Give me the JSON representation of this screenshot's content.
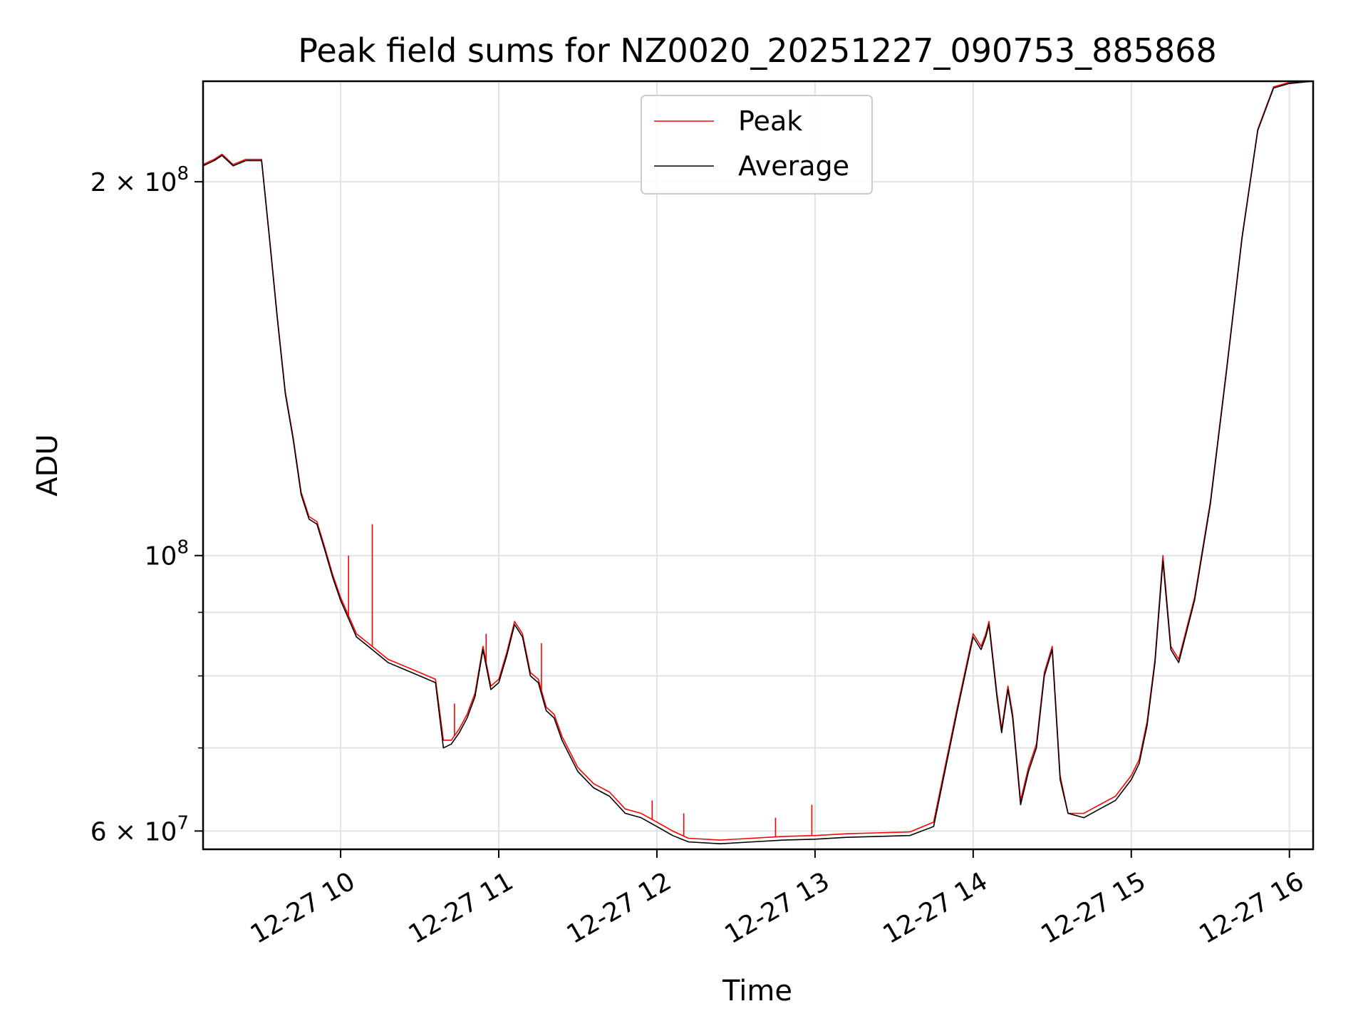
{
  "chart_data": {
    "type": "line",
    "title": "Peak field sums for NZ0020_20251227_090753_885868",
    "xlabel": "Time",
    "ylabel": "ADU",
    "yscale": "log",
    "xlim": [
      9.13,
      16.15
    ],
    "ylim": [
      58000000,
      241000000
    ],
    "grid": true,
    "legend_position": "upper-center",
    "x_ticks": [
      {
        "value": 10,
        "label": "12-27 10"
      },
      {
        "value": 11,
        "label": "12-27 11"
      },
      {
        "value": 12,
        "label": "12-27 12"
      },
      {
        "value": 13,
        "label": "12-27 13"
      },
      {
        "value": 14,
        "label": "12-27 14"
      },
      {
        "value": 15,
        "label": "12-27 15"
      },
      {
        "value": 16,
        "label": "12-27 16"
      }
    ],
    "y_major_ticks": [
      {
        "value": 60000000,
        "base": "6 × 10",
        "exp": "7"
      },
      {
        "value": 100000000,
        "base": "10",
        "exp": "8"
      },
      {
        "value": 200000000,
        "base": "2 × 10",
        "exp": "8"
      }
    ],
    "y_minor_gridlines": [
      70000000,
      80000000,
      90000000
    ],
    "x_unit": "hours (2025-12-27)",
    "series": [
      {
        "name": "Average",
        "color": "#000000",
        "x": [
          9.13,
          9.2,
          9.25,
          9.32,
          9.4,
          9.5,
          9.55,
          9.6,
          9.65,
          9.7,
          9.75,
          9.8,
          9.85,
          9.9,
          9.95,
          10.0,
          10.1,
          10.2,
          10.3,
          10.4,
          10.5,
          10.6,
          10.65,
          10.7,
          10.75,
          10.8,
          10.85,
          10.9,
          10.95,
          11.0,
          11.05,
          11.1,
          11.15,
          11.2,
          11.25,
          11.3,
          11.35,
          11.4,
          11.5,
          11.6,
          11.7,
          11.8,
          11.9,
          12.0,
          12.1,
          12.2,
          12.4,
          12.6,
          12.8,
          13.0,
          13.2,
          13.4,
          13.6,
          13.75,
          13.8,
          13.9,
          14.0,
          14.05,
          14.08,
          14.1,
          14.15,
          14.18,
          14.22,
          14.25,
          14.3,
          14.35,
          14.4,
          14.45,
          14.5,
          14.55,
          14.6,
          14.7,
          14.8,
          14.9,
          15.0,
          15.05,
          15.1,
          15.15,
          15.2,
          15.25,
          15.3,
          15.4,
          15.5,
          15.6,
          15.7,
          15.8,
          15.9,
          16.0,
          16.15
        ],
        "y": [
          206000000,
          208000000,
          210000000,
          206000000,
          208000000,
          208000000,
          180000000,
          155000000,
          135000000,
          124000000,
          112000000,
          107000000,
          106000000,
          101000000,
          96000000,
          92000000,
          86000000,
          84000000,
          82000000,
          81000000,
          80000000,
          79000000,
          70000000,
          70500000,
          72000000,
          74000000,
          77000000,
          84000000,
          78000000,
          79000000,
          83000000,
          88000000,
          86000000,
          80000000,
          79000000,
          75000000,
          74000000,
          71000000,
          67000000,
          65000000,
          64000000,
          62000000,
          61500000,
          60500000,
          59500000,
          58800000,
          58600000,
          58800000,
          59000000,
          59100000,
          59300000,
          59400000,
          59500000,
          60500000,
          65000000,
          75000000,
          86000000,
          84000000,
          86000000,
          88000000,
          77000000,
          72000000,
          78000000,
          74000000,
          63000000,
          67000000,
          70000000,
          80000000,
          84000000,
          66000000,
          62000000,
          61500000,
          62500000,
          63500000,
          66000000,
          68000000,
          73000000,
          82000000,
          99000000,
          84000000,
          82000000,
          92000000,
          110000000,
          140000000,
          180000000,
          220000000,
          238000000,
          240000000,
          241000000
        ]
      },
      {
        "name": "Peak",
        "color": "#ff0000",
        "x": [
          9.13,
          9.2,
          9.25,
          9.32,
          9.4,
          9.5,
          9.55,
          9.6,
          9.65,
          9.7,
          9.75,
          9.8,
          9.85,
          9.9,
          9.95,
          10.0,
          10.1,
          10.2,
          10.3,
          10.4,
          10.5,
          10.6,
          10.65,
          10.7,
          10.75,
          10.8,
          10.85,
          10.9,
          10.95,
          11.0,
          11.05,
          11.1,
          11.15,
          11.2,
          11.25,
          11.3,
          11.35,
          11.4,
          11.5,
          11.6,
          11.7,
          11.8,
          11.9,
          12.0,
          12.1,
          12.2,
          12.4,
          12.6,
          12.8,
          13.0,
          13.2,
          13.4,
          13.6,
          13.75,
          13.8,
          13.9,
          14.0,
          14.05,
          14.08,
          14.1,
          14.15,
          14.18,
          14.22,
          14.25,
          14.3,
          14.35,
          14.4,
          14.45,
          14.5,
          14.55,
          14.6,
          14.7,
          14.8,
          14.9,
          15.0,
          15.05,
          15.1,
          15.15,
          15.2,
          15.25,
          15.3,
          15.4,
          15.5,
          15.6,
          15.7,
          15.8,
          15.9,
          16.0,
          16.15
        ],
        "y": [
          206500000,
          208500000,
          210500000,
          206500000,
          208500000,
          208500000,
          180500000,
          155500000,
          135500000,
          124500000,
          112500000,
          107500000,
          106500000,
          101500000,
          96500000,
          92500000,
          86500000,
          84500000,
          82500000,
          81500000,
          80500000,
          79500000,
          71000000,
          71000000,
          72500000,
          74500000,
          77500000,
          84500000,
          78500000,
          79500000,
          83500000,
          88500000,
          86500000,
          80500000,
          79500000,
          75500000,
          74500000,
          71500000,
          67500000,
          65500000,
          64500000,
          62500000,
          62000000,
          61000000,
          60000000,
          59200000,
          59000000,
          59200000,
          59400000,
          59500000,
          59700000,
          59800000,
          59900000,
          61000000,
          65500000,
          75500000,
          86500000,
          84500000,
          86500000,
          88500000,
          77500000,
          72500000,
          78500000,
          74500000,
          63500000,
          67500000,
          70500000,
          80500000,
          84500000,
          66500000,
          62000000,
          62000000,
          63000000,
          64000000,
          66500000,
          68500000,
          73500000,
          82500000,
          100000000,
          84500000,
          82500000,
          92500000,
          110500000,
          140500000,
          180500000,
          220500000,
          238500000,
          240500000,
          241000000
        ],
        "spikes": [
          {
            "x": 10.2,
            "y": 106000000
          },
          {
            "x": 10.05,
            "y": 100000000
          },
          {
            "x": 10.72,
            "y": 76000000
          },
          {
            "x": 10.92,
            "y": 86500000
          },
          {
            "x": 11.27,
            "y": 85000000
          },
          {
            "x": 11.97,
            "y": 63500000
          },
          {
            "x": 12.17,
            "y": 62000000
          },
          {
            "x": 12.75,
            "y": 61500000
          },
          {
            "x": 12.98,
            "y": 63000000
          }
        ]
      }
    ]
  }
}
